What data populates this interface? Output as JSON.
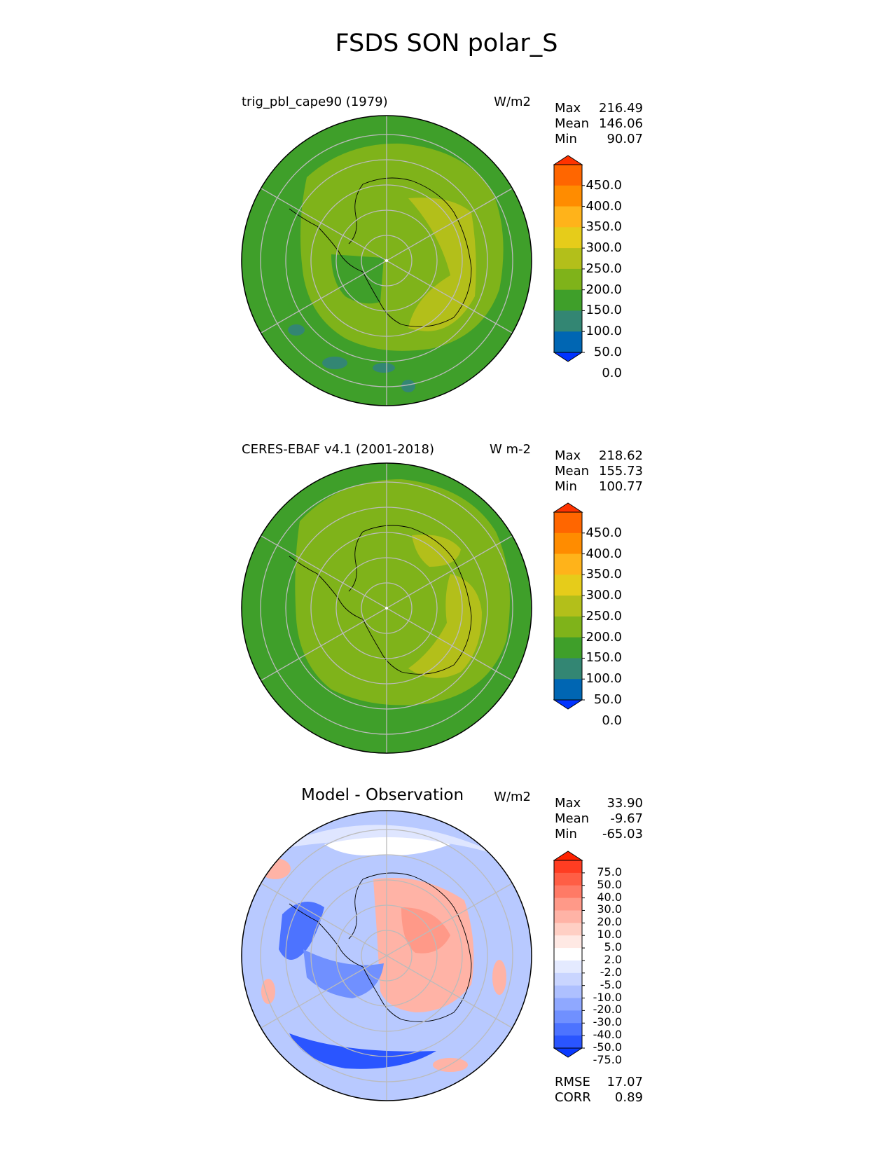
{
  "title": "FSDS SON polar_S",
  "panels": [
    {
      "title": "trig_pbl_cape90 (1979)",
      "units": "W/m2",
      "stats": [
        {
          "label": "Max",
          "value": "216.49"
        },
        {
          "label": "Mean",
          "value": "146.06"
        },
        {
          "label": "Min",
          "value": "90.07"
        }
      ],
      "colorbar_labels": [
        "450.0",
        "400.0",
        "350.0",
        "300.0",
        "250.0",
        "200.0",
        "150.0",
        "100.0",
        "50.0",
        "0.0"
      ],
      "colorbar_colors": [
        "#ff3300",
        "#ff6600",
        "#ff8c00",
        "#ffb31a",
        "#e6cc1a",
        "#b3bf1a",
        "#7fb31a",
        "#3f9f2a",
        "#338673",
        "#0066b3",
        "#0033ff"
      ]
    },
    {
      "title": "CERES-EBAF v4.1 (2001-2018)",
      "units": "W m-2",
      "stats": [
        {
          "label": "Max",
          "value": "218.62"
        },
        {
          "label": "Mean",
          "value": "155.73"
        },
        {
          "label": "Min",
          "value": "100.77"
        }
      ],
      "colorbar_labels": [
        "450.0",
        "400.0",
        "350.0",
        "300.0",
        "250.0",
        "200.0",
        "150.0",
        "100.0",
        "50.0",
        "0.0"
      ],
      "colorbar_colors": [
        "#ff3300",
        "#ff6600",
        "#ff8c00",
        "#ffb31a",
        "#e6cc1a",
        "#b3bf1a",
        "#7fb31a",
        "#3f9f2a",
        "#338673",
        "#0066b3",
        "#0033ff"
      ]
    },
    {
      "title": "Model - Observation",
      "units": "W/m2",
      "stats": [
        {
          "label": "Max",
          "value": "33.90"
        },
        {
          "label": "Mean",
          "value": "-9.67"
        },
        {
          "label": "Min",
          "value": "-65.03"
        }
      ],
      "colorbar_labels": [
        "75.0",
        "50.0",
        "40.0",
        "30.0",
        "20.0",
        "10.0",
        "5.0",
        "2.0",
        "-2.0",
        "-5.0",
        "-10.0",
        "-20.0",
        "-30.0",
        "-40.0",
        "-50.0",
        "-75.0"
      ],
      "colorbar_colors": [
        "#ff2200",
        "#ff3d22",
        "#ff5e45",
        "#ff7a66",
        "#ff9988",
        "#ffb3a6",
        "#ffcfc4",
        "#ffe9e4",
        "#ffffff",
        "#e4eaff",
        "#c9d5ff",
        "#aec0ff",
        "#8fa8ff",
        "#7090ff",
        "#4d73ff",
        "#2a55ff",
        "#0a3aff"
      ],
      "error_stats": [
        {
          "label": "RMSE",
          "value": "17.07"
        },
        {
          "label": "CORR",
          "value": "0.89"
        }
      ]
    }
  ],
  "colors": {
    "ocean_green": "#3f9f2a",
    "mid_green": "#7fb31a",
    "yellow_green": "#b3bf1a",
    "diff_background": "#b8c9ff",
    "gridline": "#bbbbbb",
    "coastline": "#000000"
  }
}
